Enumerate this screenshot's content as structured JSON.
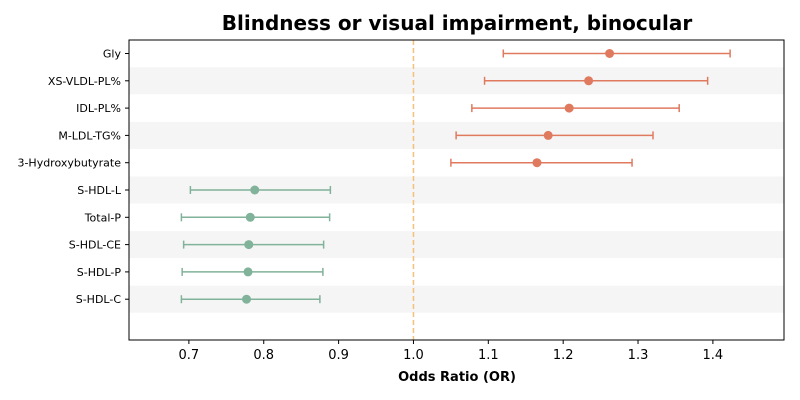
{
  "chart_data": {
    "type": "forest",
    "title": "Blindness or visual impairment, binocular",
    "xlabel": "Odds Ratio (OR)",
    "ylabel": "",
    "xlim": [
      0.62,
      1.495
    ],
    "xticks": [
      0.7,
      0.8,
      0.9,
      1.0,
      1.1,
      1.2,
      1.3,
      1.4
    ],
    "xtick_labels": [
      "0.7",
      "0.8",
      "0.9",
      "1.0",
      "1.1",
      "1.2",
      "1.3",
      "1.4"
    ],
    "reference_line": 1.0,
    "grid": false,
    "alternating_row_shading": true,
    "colors": {
      "positive": "#e07a5f",
      "negative": "#81b29a",
      "reference": "#f2c17a",
      "row_shade": "#f5f5f5"
    },
    "categories": [
      "Gly",
      "XS-VLDL-PL%",
      "IDL-PL%",
      "M-LDL-TG%",
      "3-Hydroxybutyrate",
      "S-HDL-L",
      "Total-P",
      "S-HDL-CE",
      "S-HDL-P",
      "S-HDL-C"
    ],
    "or": [
      1.262,
      1.234,
      1.208,
      1.18,
      1.165,
      0.788,
      0.782,
      0.78,
      0.779,
      0.777
    ],
    "ci_low": [
      1.12,
      1.095,
      1.078,
      1.057,
      1.05,
      0.702,
      0.69,
      0.693,
      0.691,
      0.69
    ],
    "ci_high": [
      1.423,
      1.393,
      1.355,
      1.32,
      1.292,
      0.889,
      0.888,
      0.88,
      0.879,
      0.875
    ]
  }
}
